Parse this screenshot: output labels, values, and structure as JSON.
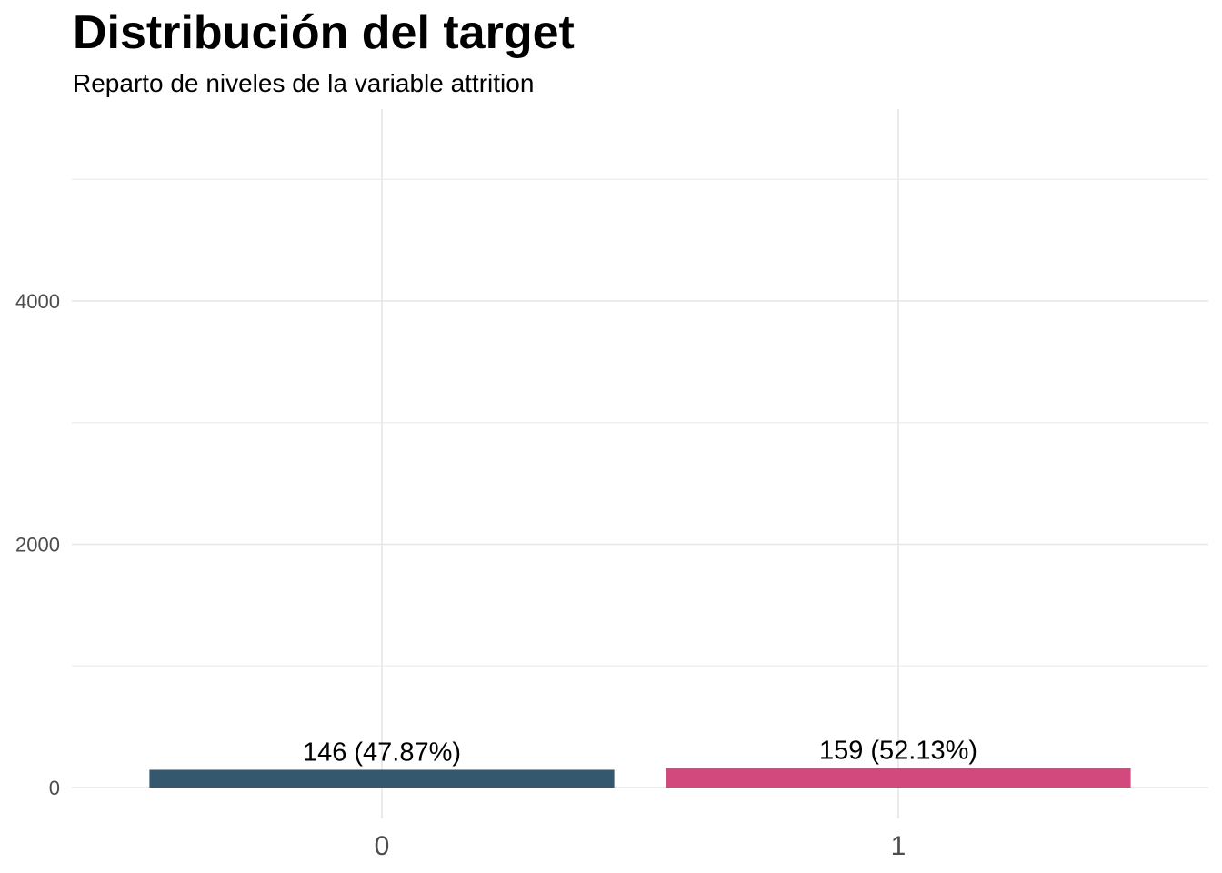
{
  "chart_data": {
    "type": "bar",
    "title": "Distribución del target",
    "subtitle": "Reparto de niveles de la variable attrition",
    "xlabel": "",
    "ylabel": "",
    "categories": [
      "0",
      "1"
    ],
    "values": [
      146,
      159
    ],
    "data_labels": [
      "146 (47.87%)",
      "159 (52.13%)"
    ],
    "colors": [
      "#34586e",
      "#d1497d"
    ],
    "ylim": [
      0,
      5000
    ],
    "y_ticks": [
      0,
      2000,
      4000
    ],
    "y_minor_ticks": [
      1000,
      3000,
      5000
    ],
    "grid": true,
    "legend": "none"
  }
}
